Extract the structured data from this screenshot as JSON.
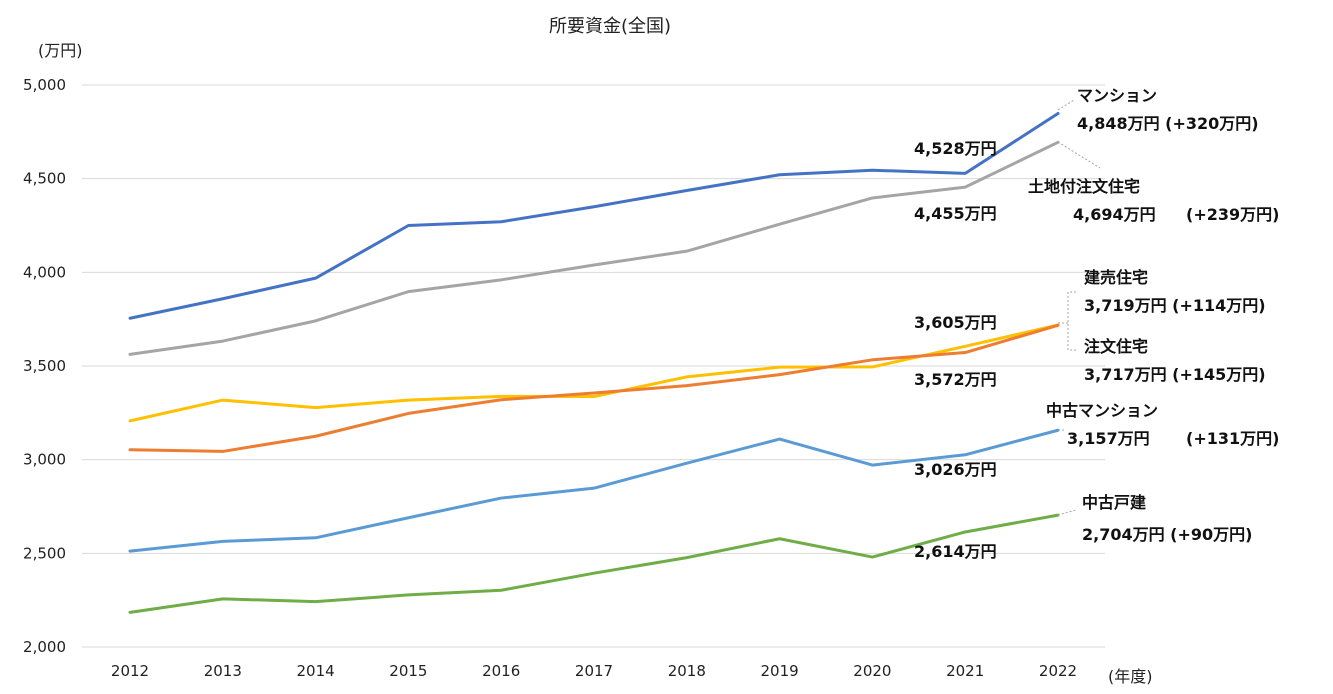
{
  "chart_data": {
    "type": "line",
    "title": "所要資金(全国)",
    "ylabel": "(万円)",
    "xlabel": "(年度)",
    "ylim": [
      2000,
      5000
    ],
    "yticks": [
      2000,
      2500,
      3000,
      3500,
      4000,
      4500,
      5000
    ],
    "ytick_labels": [
      "2,000",
      "2,500",
      "3,000",
      "3,500",
      "4,000",
      "4,500",
      "5,000"
    ],
    "x": [
      "2012",
      "2013",
      "2014",
      "2015",
      "2016",
      "2017",
      "2018",
      "2019",
      "2020",
      "2021",
      "2022"
    ],
    "grid": true,
    "series": [
      {
        "name": "マンション",
        "color": "#4472C4",
        "values": [
          3755,
          3859,
          3969,
          4250,
          4270,
          4350,
          4437,
          4521,
          4545,
          4528,
          4848
        ]
      },
      {
        "name": "土地付注文住宅",
        "color": "#A5A5A5",
        "values": [
          3562,
          3633,
          3741,
          3897,
          3960,
          4039,
          4113,
          4257,
          4397,
          4455,
          4694
        ]
      },
      {
        "name": "建売住宅",
        "color": "#FFC000",
        "values": [
          3207,
          3318,
          3278,
          3318,
          3338,
          3337,
          3442,
          3494,
          3495,
          3605,
          3719
        ]
      },
      {
        "name": "注文住宅",
        "color": "#ED7D31",
        "values": [
          3053,
          3044,
          3125,
          3247,
          3320,
          3356,
          3395,
          3454,
          3533,
          3572,
          3717
        ]
      },
      {
        "name": "中古マンション",
        "color": "#5B9BD5",
        "values": [
          2512,
          2564,
          2583,
          2690,
          2795,
          2848,
          2981,
          3110,
          2971,
          3026,
          3157
        ]
      },
      {
        "name": "中古戸建",
        "color": "#70AD47",
        "values": [
          2185,
          2257,
          2242,
          2278,
          2303,
          2394,
          2477,
          2578,
          2480,
          2614,
          2704
        ]
      }
    ],
    "annotations": {
      "mansion_2021": "4,528万円",
      "mansion_name": "マンション",
      "mansion_2022": "4,848万円 (+320万円)",
      "land_2021": "4,455万円",
      "land_name": "土地付注文住宅",
      "land_2022_value": "4,694万円",
      "land_2022_diff": "(+239万円)",
      "tateuri_2021": "3,605万円",
      "tateuri_name": "建売住宅",
      "tateuri_2022": "3,719万円 (+114万円)",
      "chumon_2021": "3,572万円",
      "chumon_name": "注文住宅",
      "chumon_2022": "3,717万円 (+145万円)",
      "used_mansion_2021": "3,026万円",
      "used_mansion_name": "中古マンション",
      "used_mansion_2022_value": "3,157万円",
      "used_mansion_2022_diff": "(+131万円)",
      "used_house_2021": "2,614万円",
      "used_house_name": "中古戸建",
      "used_house_2022": "2,704万円 (+90万円)"
    }
  }
}
